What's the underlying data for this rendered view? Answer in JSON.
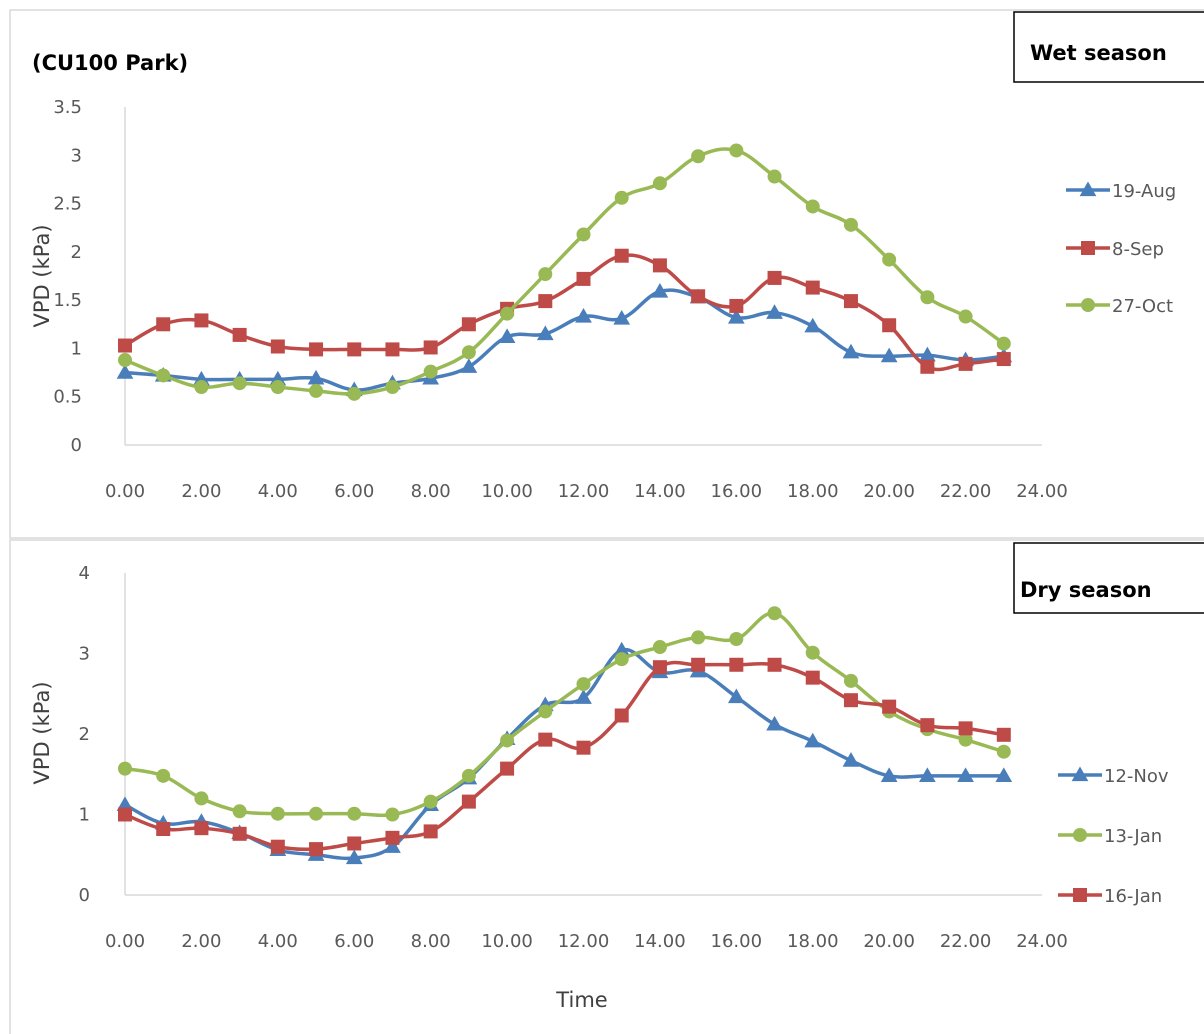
{
  "chart_data": [
    {
      "type": "line",
      "title": "(CU100 Park)",
      "season_label": "Wet season",
      "xlabel": "",
      "ylabel": "VPD (kPa)",
      "xlim": [
        0,
        24
      ],
      "ylim": [
        0,
        3.5
      ],
      "x_ticks": [
        "0.00",
        "2.00",
        "4.00",
        "6.00",
        "8.00",
        "10.00",
        "12.00",
        "14.00",
        "16.00",
        "18.00",
        "20.00",
        "22.00",
        "24.00"
      ],
      "y_ticks": [
        "0",
        "0.5",
        "1",
        "1.5",
        "2",
        "2.5",
        "3",
        "3.5"
      ],
      "grid": false,
      "legend_position": "right",
      "x": [
        0,
        1,
        2,
        3,
        4,
        5,
        6,
        7,
        8,
        9,
        10,
        11,
        12,
        13,
        14,
        15,
        16,
        17,
        18,
        19,
        20,
        21,
        22,
        23
      ],
      "series": [
        {
          "name": "19-Aug",
          "color": "#4a7ebb",
          "marker": "triangle",
          "values": [
            0.75,
            0.72,
            0.68,
            0.68,
            0.68,
            0.69,
            0.57,
            0.64,
            0.69,
            0.81,
            1.12,
            1.15,
            1.33,
            1.31,
            1.59,
            1.53,
            1.32,
            1.37,
            1.23,
            0.96,
            0.92,
            0.93,
            0.88,
            0.92
          ]
        },
        {
          "name": "8-Sep",
          "color": "#be4b48",
          "marker": "square",
          "values": [
            1.03,
            1.25,
            1.29,
            1.14,
            1.02,
            0.99,
            0.99,
            0.99,
            1.01,
            1.25,
            1.41,
            1.49,
            1.72,
            1.96,
            1.86,
            1.54,
            1.44,
            1.73,
            1.63,
            1.49,
            1.24,
            0.81,
            0.84,
            0.89
          ]
        },
        {
          "name": "27-Oct",
          "color": "#98b954",
          "marker": "circle",
          "values": [
            0.88,
            0.72,
            0.6,
            0.64,
            0.6,
            0.56,
            0.53,
            0.6,
            0.76,
            0.96,
            1.36,
            1.77,
            2.18,
            2.56,
            2.71,
            2.99,
            3.05,
            2.78,
            2.47,
            2.28,
            1.92,
            1.53,
            1.33,
            1.05
          ]
        }
      ]
    },
    {
      "type": "line",
      "title": "",
      "season_label": "Dry season",
      "xlabel": "Time",
      "ylabel": "VPD (kPa)",
      "xlim": [
        0,
        24
      ],
      "ylim": [
        0,
        4
      ],
      "x_ticks": [
        "0.00",
        "2.00",
        "4.00",
        "6.00",
        "8.00",
        "10.00",
        "12.00",
        "14.00",
        "16.00",
        "18.00",
        "20.00",
        "22.00",
        "24.00"
      ],
      "y_ticks": [
        "0",
        "1",
        "2",
        "3",
        "4"
      ],
      "grid": false,
      "legend_position": "right",
      "x": [
        0,
        1,
        2,
        3,
        4,
        5,
        6,
        7,
        8,
        9,
        10,
        11,
        12,
        13,
        14,
        15,
        16,
        17,
        18,
        19,
        20,
        21,
        22,
        23
      ],
      "series": [
        {
          "name": "12-Nov",
          "color": "#4a7ebb",
          "marker": "triangle",
          "values": [
            1.12,
            0.89,
            0.91,
            0.77,
            0.56,
            0.5,
            0.46,
            0.6,
            1.12,
            1.45,
            1.94,
            2.36,
            2.45,
            3.04,
            2.77,
            2.78,
            2.46,
            2.12,
            1.91,
            1.67,
            1.48,
            1.48,
            1.48,
            1.48
          ]
        },
        {
          "name": "13-Jan",
          "color": "#98b954",
          "marker": "circle",
          "values": [
            1.57,
            1.48,
            1.2,
            1.04,
            1.01,
            1.01,
            1.01,
            1.0,
            1.16,
            1.48,
            1.92,
            2.28,
            2.62,
            2.93,
            3.08,
            3.2,
            3.18,
            3.5,
            3.01,
            2.66,
            2.28,
            2.06,
            1.93,
            1.78
          ]
        },
        {
          "name": "16-Jan",
          "color": "#be4b48",
          "marker": "square",
          "values": [
            1.0,
            0.82,
            0.83,
            0.76,
            0.6,
            0.57,
            0.64,
            0.71,
            0.79,
            1.16,
            1.57,
            1.93,
            1.83,
            2.23,
            2.83,
            2.86,
            2.86,
            2.86,
            2.7,
            2.42,
            2.34,
            2.11,
            2.07,
            1.99
          ]
        }
      ]
    }
  ]
}
